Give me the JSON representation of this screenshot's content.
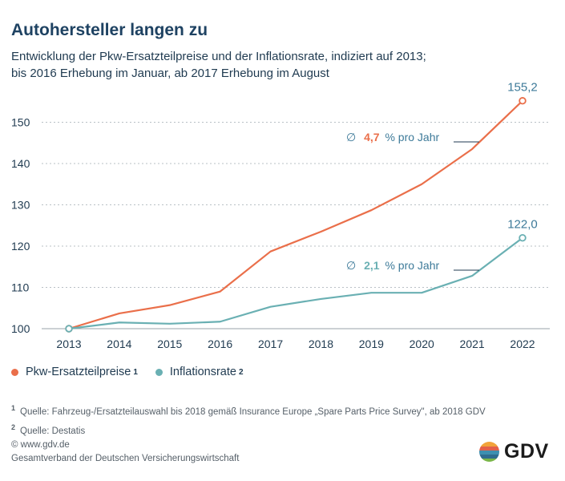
{
  "header": {
    "title": "Autohersteller langen zu",
    "subtitle_line1": "Entwicklung der Pkw-Ersatzteilpreise und der Inflationsrate, indiziert auf 2013;",
    "subtitle_line2": "bis 2016 Erhebung im Januar, ab 2017 Erhebung im August"
  },
  "chart_data": {
    "type": "line",
    "x": [
      2013,
      2014,
      2015,
      2016,
      2017,
      2018,
      2019,
      2020,
      2021,
      2022
    ],
    "yticks": [
      100,
      110,
      120,
      130,
      140,
      150
    ],
    "ylim": [
      98,
      158
    ],
    "grid": true,
    "series": [
      {
        "name": "Pkw-Ersatzteilpreise",
        "color": "#ea6f4a",
        "values": [
          100,
          103.7,
          105.7,
          109,
          118.7,
          123.5,
          128.7,
          135,
          143.5,
          155.2
        ],
        "end_label": "155,2",
        "annotation": {
          "symbol": "∅",
          "value": "4,7",
          "text": "% pro Jahr"
        }
      },
      {
        "name": "Inflationsrate",
        "color": "#6ab0b3",
        "values": [
          100,
          101.5,
          101.2,
          101.7,
          105.3,
          107.2,
          108.7,
          108.7,
          112.8,
          122
        ],
        "end_label": "122,0",
        "annotation": {
          "symbol": "∅",
          "value": "2,1",
          "text": "% pro Jahr"
        }
      }
    ]
  },
  "legend": {
    "items": [
      {
        "label": "Pkw-Ersatzteilpreise",
        "footnote": "1",
        "color": "#ea6f4a"
      },
      {
        "label": "Inflationsrate",
        "footnote": "2",
        "color": "#6ab0b3"
      }
    ]
  },
  "footnotes": [
    {
      "num": "1",
      "text": "Quelle: Fahrzeug-/Ersatzteilauswahl bis 2018 gemäß Insurance Europe „Spare Parts Price Survey\", ab 2018 GDV"
    },
    {
      "num": "2",
      "text": "Quelle: Destatis"
    }
  ],
  "footer": {
    "copyright": "© www.gdv.de",
    "organization": "Gesamtverband der Deutschen Versicherungswirtschaft",
    "logo_text": "GDV"
  }
}
